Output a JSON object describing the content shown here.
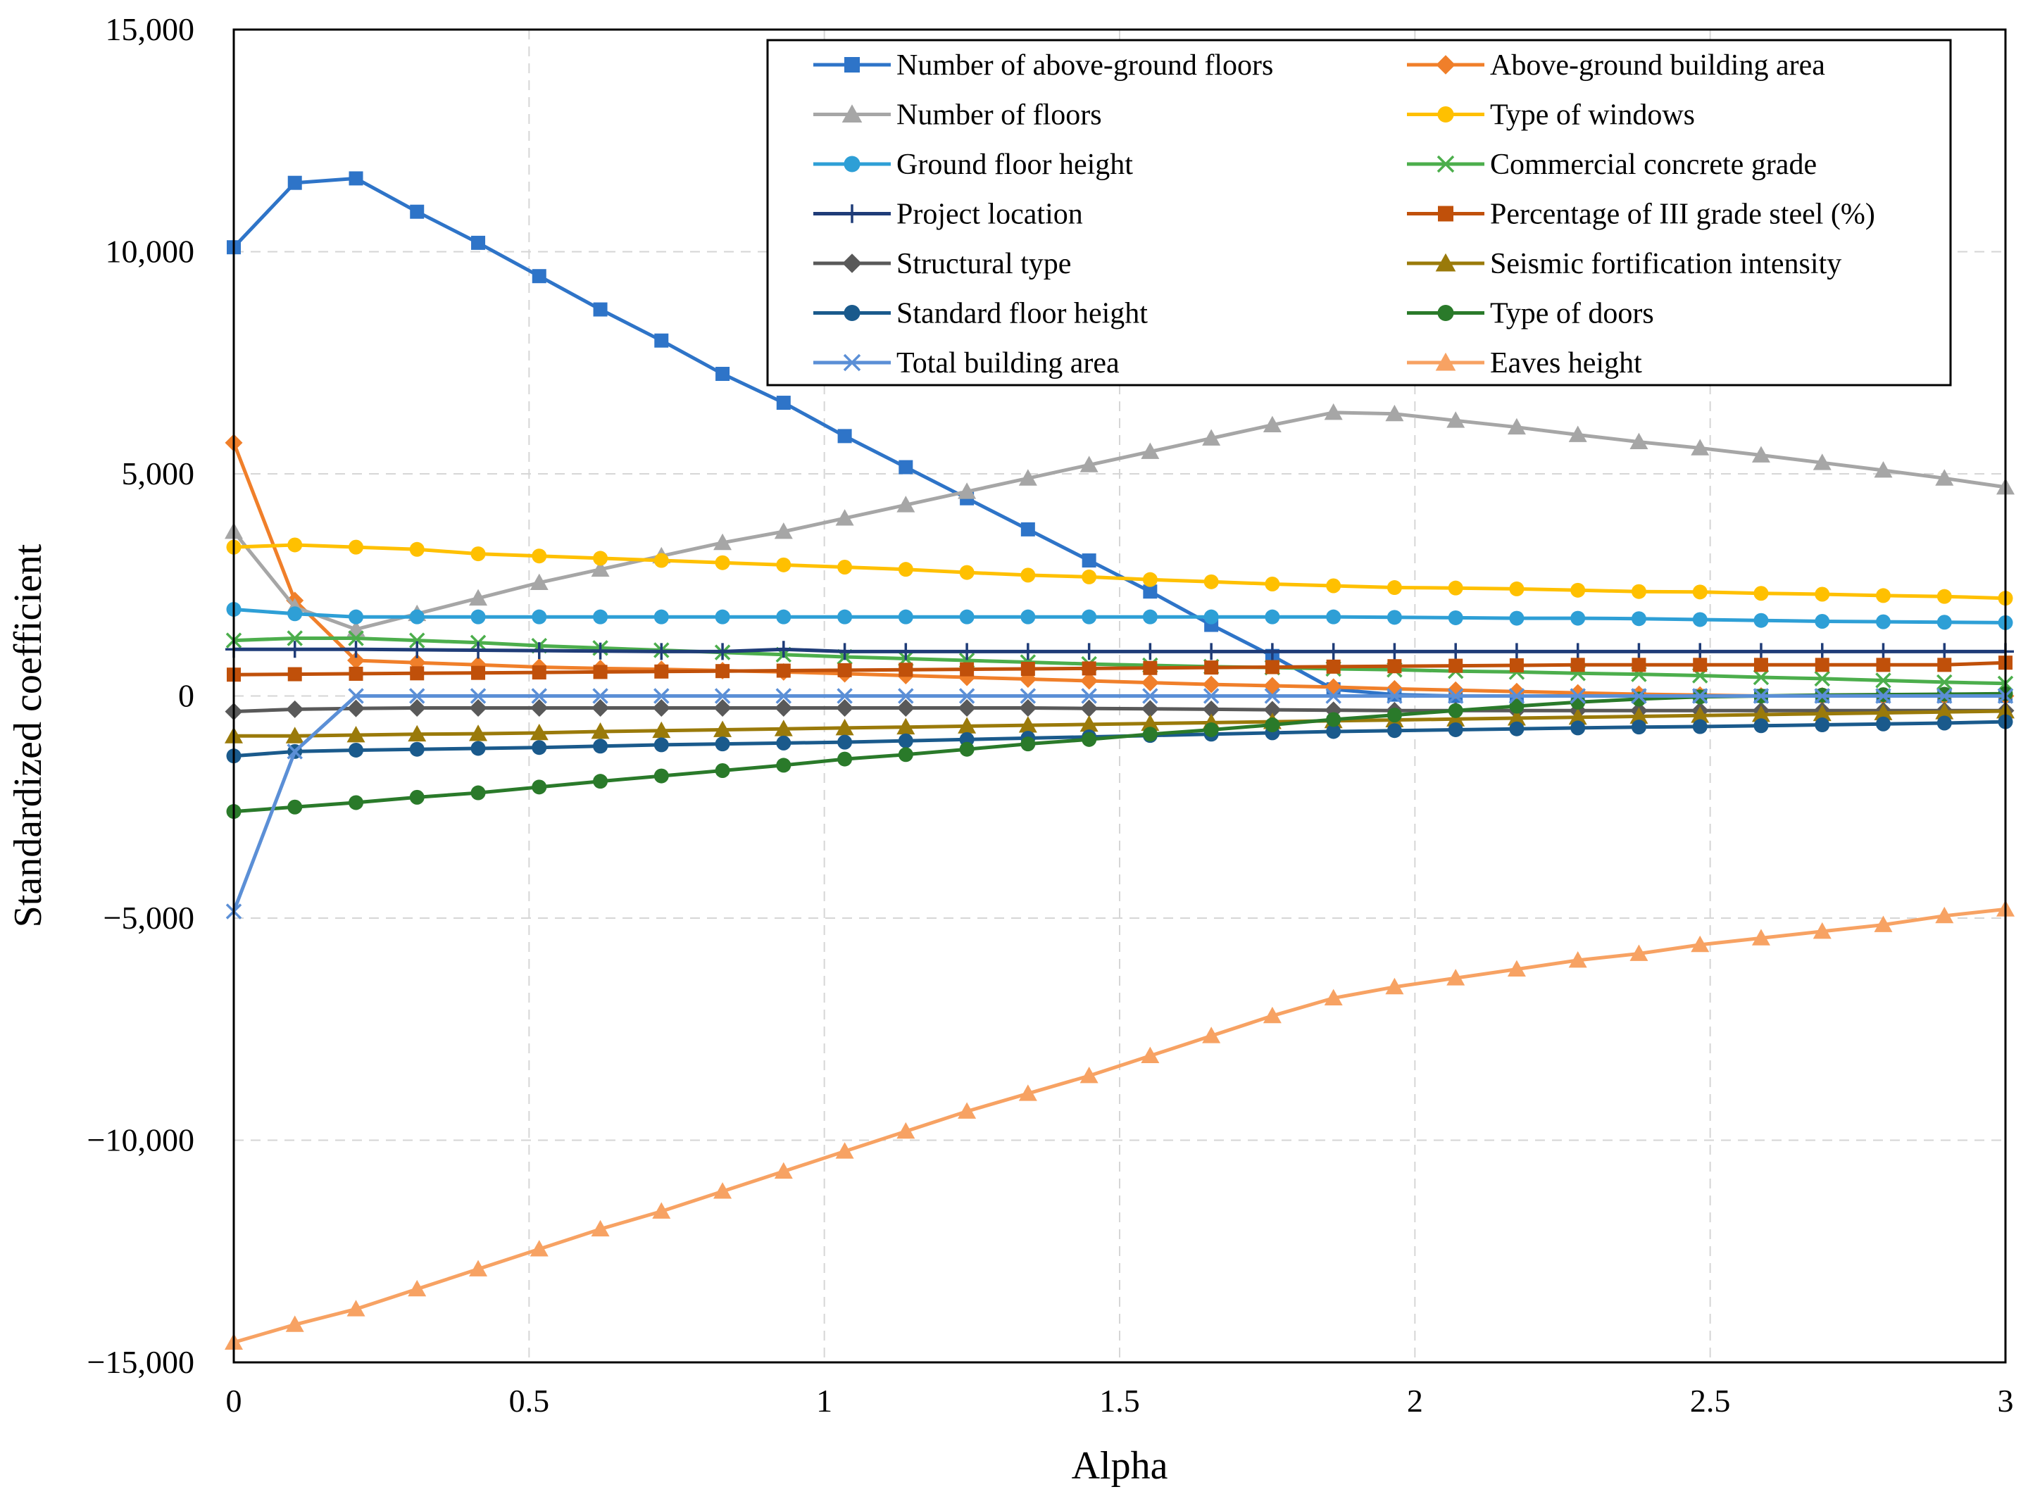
{
  "chart_data": {
    "type": "line",
    "xlabel": "Alpha",
    "ylabel": "Standardized coefficient",
    "xlim": [
      0,
      3
    ],
    "ylim": [
      -15000,
      15000
    ],
    "xticks": [
      0,
      0.5,
      1,
      1.5,
      2,
      2.5,
      3
    ],
    "xtick_labels": [
      "0",
      "0.5",
      "1",
      "1.5",
      "2",
      "2.5",
      "3"
    ],
    "yticks": [
      -15000,
      -10000,
      -5000,
      0,
      5000,
      10000,
      15000
    ],
    "ytick_labels": [
      "−15,000",
      "−10,000",
      "−5,000",
      "0",
      "5,000",
      "10,000",
      "15,000"
    ],
    "grid": "dashed",
    "legend_position": "top-right",
    "x": [
      0,
      0.1034,
      0.2069,
      0.3103,
      0.4138,
      0.5172,
      0.6207,
      0.7241,
      0.8276,
      0.931,
      1.0345,
      1.1379,
      1.2414,
      1.3448,
      1.4483,
      1.5517,
      1.6552,
      1.7586,
      1.8621,
      1.9655,
      2.069,
      2.1724,
      2.2759,
      2.3793,
      2.4828,
      2.5862,
      2.6897,
      2.7931,
      2.8966,
      3
    ],
    "series": [
      {
        "name": "Number of above-ground floors",
        "color": "#2e74c8",
        "marker": "square",
        "values": [
          10100,
          11550,
          11650,
          10900,
          10200,
          9450,
          8700,
          8000,
          7250,
          6600,
          5850,
          5150,
          4450,
          3750,
          3050,
          2350,
          1600,
          900,
          150,
          30,
          0,
          0,
          0,
          0,
          0,
          0,
          0,
          0,
          0,
          0
        ]
      },
      {
        "name": "Above-ground building area",
        "color": "#f07f2a",
        "marker": "diamond",
        "values": [
          5700,
          2150,
          800,
          750,
          700,
          650,
          620,
          600,
          570,
          540,
          500,
          460,
          420,
          380,
          340,
          300,
          260,
          230,
          200,
          160,
          130,
          100,
          70,
          40,
          20,
          0,
          0,
          0,
          0,
          0
        ]
      },
      {
        "name": "Number of floors",
        "color": "#a6a6a6",
        "marker": "triangle",
        "values": [
          3700,
          2000,
          1500,
          1850,
          2200,
          2550,
          2850,
          3150,
          3450,
          3700,
          4000,
          4300,
          4600,
          4900,
          5200,
          5500,
          5800,
          6100,
          6380,
          6350,
          6200,
          6050,
          5880,
          5720,
          5580,
          5420,
          5250,
          5080,
          4900,
          4700
        ]
      },
      {
        "name": "Type of windows",
        "color": "#ffc000",
        "marker": "circle",
        "values": [
          3350,
          3400,
          3350,
          3300,
          3200,
          3150,
          3100,
          3050,
          3000,
          2950,
          2900,
          2850,
          2780,
          2720,
          2680,
          2620,
          2570,
          2520,
          2480,
          2440,
          2430,
          2410,
          2380,
          2350,
          2340,
          2310,
          2290,
          2260,
          2240,
          2200
        ]
      },
      {
        "name": "Ground floor height",
        "color": "#2e9fd6",
        "marker": "circle",
        "values": [
          1950,
          1850,
          1780,
          1780,
          1780,
          1780,
          1780,
          1780,
          1780,
          1780,
          1780,
          1780,
          1780,
          1780,
          1780,
          1780,
          1780,
          1780,
          1780,
          1770,
          1760,
          1750,
          1750,
          1740,
          1720,
          1700,
          1680,
          1670,
          1660,
          1650
        ]
      },
      {
        "name": "Commercial concrete grade",
        "color": "#4cae4c",
        "marker": "x",
        "values": [
          1250,
          1300,
          1300,
          1250,
          1200,
          1130,
          1080,
          1030,
          980,
          930,
          880,
          840,
          800,
          760,
          720,
          690,
          660,
          640,
          610,
          590,
          560,
          540,
          510,
          490,
          460,
          420,
          390,
          350,
          310,
          280
        ]
      },
      {
        "name": "Project location",
        "color": "#1f3c78",
        "marker": "plus",
        "values": [
          1050,
          1050,
          1050,
          1040,
          1030,
          1020,
          1010,
          1000,
          1000,
          1050,
          1000,
          1000,
          1000,
          1000,
          1000,
          1000,
          1000,
          1000,
          1000,
          1000,
          1000,
          1000,
          1000,
          1000,
          1000,
          1000,
          1000,
          1000,
          1000,
          1000
        ]
      },
      {
        "name": "Percentage of III grade steel (%)",
        "color": "#c0500a",
        "marker": "square",
        "values": [
          480,
          490,
          500,
          510,
          520,
          530,
          540,
          550,
          560,
          570,
          580,
          590,
          600,
          610,
          620,
          630,
          640,
          650,
          660,
          670,
          680,
          690,
          700,
          700,
          700,
          700,
          700,
          700,
          700,
          750
        ]
      },
      {
        "name": "Structural type",
        "color": "#595959",
        "marker": "diamond",
        "values": [
          -350,
          -300,
          -280,
          -270,
          -270,
          -270,
          -270,
          -270,
          -270,
          -270,
          -270,
          -270,
          -270,
          -270,
          -280,
          -290,
          -300,
          -310,
          -320,
          -330,
          -330,
          -330,
          -330,
          -330,
          -330,
          -330,
          -330,
          -330,
          -330,
          -330
        ]
      },
      {
        "name": "Seismic fortification intensity",
        "color": "#9a7a0a",
        "marker": "triangle",
        "values": [
          -900,
          -900,
          -880,
          -860,
          -850,
          -830,
          -800,
          -780,
          -760,
          -740,
          -720,
          -700,
          -680,
          -660,
          -640,
          -620,
          -600,
          -580,
          -560,
          -540,
          -520,
          -500,
          -480,
          -460,
          -440,
          -420,
          -400,
          -380,
          -360,
          -340
        ]
      },
      {
        "name": "Standard floor height",
        "color": "#1a5a8c",
        "marker": "circle",
        "values": [
          -1350,
          -1250,
          -1220,
          -1200,
          -1180,
          -1160,
          -1130,
          -1100,
          -1080,
          -1060,
          -1040,
          -1010,
          -980,
          -950,
          -920,
          -890,
          -860,
          -830,
          -800,
          -780,
          -760,
          -740,
          -720,
          -700,
          -690,
          -670,
          -650,
          -630,
          -610,
          -580
        ]
      },
      {
        "name": "Type of doors",
        "color": "#2a7a2a",
        "marker": "circle",
        "values": [
          -2600,
          -2500,
          -2400,
          -2280,
          -2180,
          -2050,
          -1920,
          -1800,
          -1680,
          -1560,
          -1420,
          -1320,
          -1200,
          -1080,
          -980,
          -860,
          -760,
          -650,
          -530,
          -430,
          -330,
          -230,
          -140,
          -70,
          -20,
          0,
          20,
          30,
          40,
          50
        ]
      },
      {
        "name": "Total building area",
        "color": "#5b8fd6",
        "marker": "x",
        "values": [
          -4850,
          -1250,
          0,
          0,
          0,
          0,
          0,
          0,
          0,
          0,
          0,
          0,
          0,
          0,
          0,
          0,
          0,
          0,
          0,
          0,
          0,
          0,
          0,
          0,
          0,
          0,
          0,
          0,
          0,
          0
        ]
      },
      {
        "name": "Eaves height",
        "color": "#f7a263",
        "marker": "triangle",
        "values": [
          -14550,
          -14150,
          -13800,
          -13350,
          -12900,
          -12450,
          -12000,
          -11600,
          -11150,
          -10700,
          -10250,
          -9800,
          -9350,
          -8950,
          -8550,
          -8100,
          -7650,
          -7200,
          -6800,
          -6550,
          -6350,
          -6150,
          -5950,
          -5800,
          -5600,
          -5450,
          -5300,
          -5150,
          -4950,
          -4800
        ]
      }
    ]
  }
}
